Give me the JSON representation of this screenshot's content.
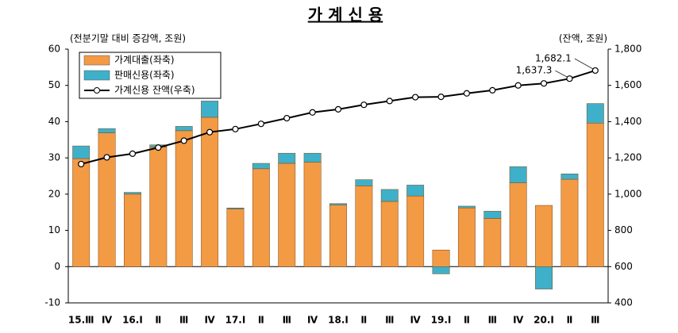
{
  "chart_data": {
    "type": "bar",
    "title": "가 계 신 용",
    "y_label": "(전분기말 대비 증감액, 조원)",
    "y2_label": "(잔액, 조원)",
    "categories": [
      "15.Ⅲ",
      "Ⅳ",
      "16.Ⅰ",
      "Ⅱ",
      "Ⅲ",
      "Ⅳ",
      "17.Ⅰ",
      "Ⅱ",
      "Ⅲ",
      "Ⅳ",
      "18.Ⅰ",
      "Ⅱ",
      "Ⅲ",
      "Ⅳ",
      "19.Ⅰ",
      "Ⅱ",
      "Ⅲ",
      "Ⅳ",
      "20.Ⅰ",
      "Ⅱ",
      "Ⅲ"
    ],
    "series": [
      {
        "name": "가계대출(좌축)",
        "color": "#f39a45",
        "values": [
          29.8,
          36.9,
          20.0,
          33.0,
          37.5,
          41.2,
          15.9,
          27.0,
          28.5,
          28.8,
          17.0,
          22.3,
          18.0,
          19.5,
          4.6,
          16.2,
          13.3,
          23.1,
          16.9,
          24.1,
          39.6
        ]
      },
      {
        "name": "판매신용(좌축)",
        "color": "#3fb0c9",
        "values": [
          3.5,
          1.2,
          0.5,
          0.6,
          1.2,
          4.5,
          0.3,
          1.5,
          2.8,
          2.5,
          0.4,
          1.7,
          3.3,
          3.0,
          -2.0,
          0.5,
          2.0,
          4.5,
          -6.2,
          1.5,
          5.4
        ]
      },
      {
        "name": "가계신용 잔액(우축)",
        "color": "#000000",
        "type": "line",
        "axis": "y2",
        "values": [
          1166,
          1203,
          1223,
          1257,
          1295,
          1342,
          1359,
          1388,
          1419,
          1451,
          1468,
          1493,
          1514,
          1535,
          1537,
          1556,
          1573,
          1600,
          1611,
          1637.3,
          1682.1
        ],
        "value_labels": [
          null,
          null,
          null,
          null,
          null,
          null,
          null,
          null,
          null,
          null,
          null,
          null,
          null,
          null,
          null,
          null,
          null,
          null,
          null,
          "1,637.3",
          "1,682.1"
        ]
      }
    ],
    "ylim": [
      -10,
      60
    ],
    "yticks": [
      -10,
      0,
      10,
      20,
      30,
      40,
      50,
      60
    ],
    "y2lim": [
      400,
      1800
    ],
    "y2ticks": [
      400,
      600,
      800,
      {
        "value": 1000,
        "label": "1,000"
      },
      {
        "value": 1200,
        "label": "1,200"
      },
      {
        "value": 1400,
        "label": "1,400"
      },
      {
        "value": 1600,
        "label": "1,600"
      },
      {
        "value": 1800,
        "label": "1,800"
      }
    ],
    "legend": "upper-left"
  }
}
